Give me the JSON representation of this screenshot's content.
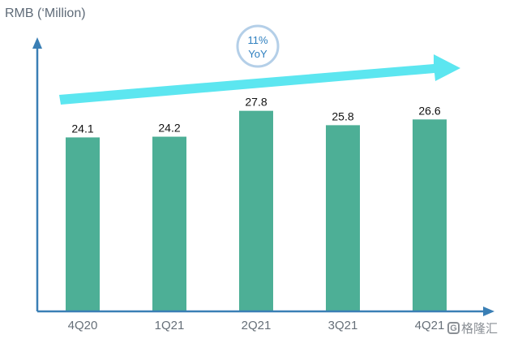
{
  "chart_data": {
    "type": "bar",
    "categories": [
      "4Q20",
      "1Q21",
      "2Q21",
      "3Q21",
      "4Q21"
    ],
    "values": [
      24.1,
      24.2,
      27.8,
      25.8,
      26.6
    ],
    "value_labels": [
      "24.1",
      "24.2",
      "27.8",
      "25.8",
      "26.6"
    ],
    "ylabel": "RMB (‘Million)",
    "xlabel": "",
    "ylim": [
      0,
      36
    ],
    "grid": false,
    "bar_color": "#4daf96",
    "axis_color": "#3a7fb5",
    "trend_annotation": {
      "line1": "11%",
      "line2": "YoY",
      "arrow_color": "#5ce6f0",
      "circle_color": "#b4cfe8"
    }
  },
  "watermark": {
    "logo_glyph": "G",
    "text": "格隆汇"
  }
}
